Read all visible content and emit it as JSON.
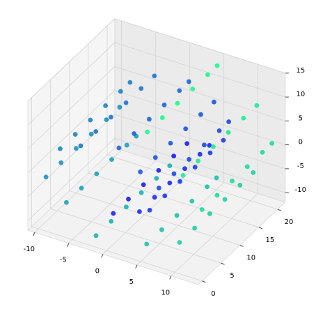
{
  "chart_data": {
    "type": "scatter3d",
    "xlim": [
      -11,
      14
    ],
    "ylim": [
      -1,
      22
    ],
    "zlim": [
      -12,
      15
    ],
    "xticks": [
      -10,
      -5,
      0,
      5,
      10
    ],
    "yticks": [
      0,
      5,
      10,
      15,
      20
    ],
    "zticks": [
      -10,
      -5,
      0,
      5,
      10,
      15
    ],
    "grid": true,
    "colormap": "winter",
    "series": [
      {
        "x": [
          0.42,
          0.42,
          0.42,
          0.42,
          0.42,
          0.42,
          3.43,
          3.43,
          3.43,
          3.43,
          3.43,
          3.43,
          5.76,
          5.76,
          5.76,
          5.76,
          5.76,
          5.76,
          6.27,
          6.27,
          6.27,
          6.27,
          6.27,
          6.27,
          4.38,
          4.38,
          4.38,
          4.38,
          4.38,
          4.38,
          0.42,
          0.42,
          0.42,
          0.42,
          0.42,
          0.42,
          -4.36,
          -4.36,
          -4.36,
          -4.36,
          -4.36,
          -4.36,
          -8.2,
          -8.2,
          -8.2,
          -8.2,
          -8.2,
          -8.2,
          -9.45,
          -9.45,
          -9.45,
          -9.45,
          -9.45,
          -9.45,
          -7.29,
          -7.29,
          -7.29,
          -7.29,
          -7.29,
          -7.29,
          -2.11,
          -2.11,
          -2.11,
          -2.11,
          -2.11,
          -2.11,
          4.48,
          4.48,
          4.48,
          4.48,
          4.48,
          4.48,
          10.13,
          10.13,
          10.13,
          10.13,
          10.13,
          10.13,
          12.59,
          12.59,
          12.59,
          12.59,
          12.59,
          12.59,
          10.64,
          10.64,
          10.64,
          10.64,
          10.64,
          10.64,
          4.57,
          4.57,
          4.57,
          4.57,
          4.57,
          4.57
        ],
        "y": [
          1,
          5,
          9,
          13,
          17,
          20.5,
          2.5,
          6.5,
          10.5,
          14.5,
          18.5,
          21,
          1,
          5,
          9,
          13,
          17,
          20.5,
          2.5,
          6.5,
          10.5,
          14.5,
          18.5,
          21,
          1,
          5,
          9,
          13,
          17,
          20.5,
          2.5,
          6.5,
          10.5,
          14.5,
          18.5,
          21,
          1,
          5,
          9,
          13,
          17,
          20.5,
          2.5,
          6.5,
          10.5,
          14.5,
          18.5,
          21,
          1,
          5,
          9,
          13,
          17,
          20.5,
          2.5,
          6.5,
          10.5,
          14.5,
          18.5,
          21,
          1,
          5,
          9,
          13,
          17,
          20.5,
          2.5,
          6.5,
          10.5,
          14.5,
          18.5,
          21,
          1,
          5,
          9,
          13,
          17,
          20.5,
          2.5,
          6.5,
          10.5,
          14.5,
          18.5,
          21,
          1,
          5,
          9,
          13,
          17,
          20.5,
          2.5,
          6.5,
          10.5,
          14.5,
          18.5,
          21
        ],
        "z": [
          -4.78,
          -4.78,
          -4.78,
          -4.78,
          -4.78,
          -4.78,
          -4.17,
          -4.17,
          -4.17,
          -4.17,
          -4.17,
          -4.17,
          -1.68,
          -1.68,
          -1.68,
          -1.68,
          -1.68,
          -1.68,
          2.06,
          2.06,
          2.06,
          2.06,
          2.06,
          2.06,
          5.71,
          5.71,
          5.71,
          5.71,
          5.71,
          5.71,
          7.79,
          7.79,
          7.79,
          7.79,
          7.79,
          7.79,
          7.18,
          7.18,
          7.18,
          7.18,
          7.18,
          7.18,
          3.71,
          3.71,
          3.71,
          3.71,
          3.71,
          3.71,
          -1.67,
          -1.67,
          -1.67,
          -1.67,
          -1.67,
          -1.67,
          -7.13,
          -7.13,
          -7.13,
          -7.13,
          -7.13,
          -7.13,
          -10.59,
          -10.59,
          -10.59,
          -10.59,
          -10.59,
          -10.59,
          -10.48,
          -10.48,
          -10.48,
          -10.48,
          -10.48,
          -10.48,
          -6.44,
          -6.44,
          -6.44,
          -6.44,
          -6.44,
          -6.44,
          0.42,
          0.42,
          0.42,
          0.42,
          0.42,
          0.42,
          7.82,
          7.82,
          7.82,
          7.82,
          7.82,
          7.82,
          13.02,
          13.02,
          13.02,
          13.02,
          13.02,
          13.02
        ],
        "c": [
          4.8,
          4.8,
          4.8,
          4.8,
          4.8,
          4.8,
          5.4,
          5.4,
          5.4,
          5.4,
          5.4,
          5.4,
          6.0,
          6.0,
          6.0,
          6.0,
          6.0,
          6.0,
          6.6,
          6.6,
          6.6,
          6.6,
          6.6,
          6.6,
          7.2,
          7.2,
          7.2,
          7.2,
          7.2,
          7.2,
          7.8,
          7.8,
          7.8,
          7.8,
          7.8,
          7.8,
          8.4,
          8.4,
          8.4,
          8.4,
          8.4,
          8.4,
          9.0,
          9.0,
          9.0,
          9.0,
          9.0,
          9.0,
          9.6,
          9.6,
          9.6,
          9.6,
          9.6,
          9.6,
          10.2,
          10.2,
          10.2,
          10.2,
          10.2,
          10.2,
          10.8,
          10.8,
          10.8,
          10.8,
          10.8,
          10.8,
          11.4,
          11.4,
          11.4,
          11.4,
          11.4,
          11.4,
          12.0,
          12.0,
          12.0,
          12.0,
          12.0,
          12.0,
          12.6,
          12.6,
          12.6,
          12.6,
          12.6,
          12.6,
          13.2,
          13.2,
          13.2,
          13.2,
          13.2,
          13.2,
          13.8,
          13.8,
          13.8,
          13.8,
          13.8,
          13.8
        ]
      }
    ]
  }
}
